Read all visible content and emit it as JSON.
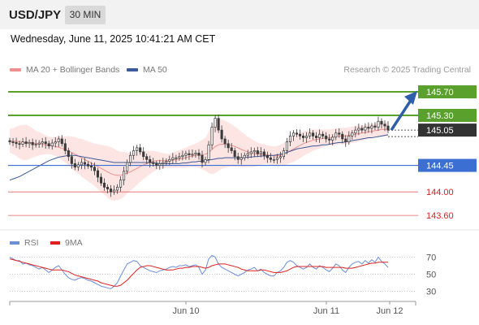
{
  "header": {
    "symbol": "USD/JPY",
    "interval": "30 MIN"
  },
  "datetime": "Wednesday, June 11, 2025 10:41:21 AM CET",
  "legend": {
    "ma20_label": "MA 20 + Bollinger Bands",
    "ma50_label": "MA 50",
    "credit": "Research © 2025 Trading Central"
  },
  "rsi_legend": {
    "rsi_label": "RSI",
    "ma9_label": "9MA"
  },
  "colors": {
    "resistance": "#5aa02c",
    "support": "#3b6fd1",
    "target_red": "#e06666",
    "arrow": "#2f5fa8",
    "current": "#333333",
    "candle": "#3a3a3a",
    "band": "#fde0df",
    "ma20": "#f08f8f",
    "ma50": "#3c5a99",
    "rsi": "#6c8ed8",
    "ma9": "#e0201f"
  },
  "chart_data": {
    "type": "candlestick",
    "y_range": [
      143.45,
      145.88
    ],
    "levels": [
      {
        "value": 145.7,
        "label": "145.70",
        "kind": "resistance"
      },
      {
        "value": 145.3,
        "label": "145.30",
        "kind": "resistance"
      },
      {
        "value": 145.05,
        "label": "145.05",
        "kind": "current"
      },
      {
        "value": 144.45,
        "label": "144.45",
        "kind": "support"
      },
      {
        "value": 144.0,
        "label": "144.00",
        "kind": "target"
      },
      {
        "value": 143.6,
        "label": "143.60",
        "kind": "target"
      }
    ],
    "x_labels": [
      "Jun 10",
      "Jun 11",
      "Jun 12"
    ],
    "closes": [
      144.85,
      144.84,
      144.82,
      144.81,
      144.85,
      144.82,
      144.84,
      144.8,
      144.81,
      144.83,
      144.85,
      144.82,
      144.78,
      144.83,
      144.85,
      144.9,
      144.82,
      144.7,
      144.6,
      144.48,
      144.42,
      144.46,
      144.5,
      144.47,
      144.44,
      144.42,
      144.36,
      144.25,
      144.15,
      144.08,
      144.05,
      144.0,
      144.03,
      144.08,
      144.2,
      144.35,
      144.5,
      144.62,
      144.7,
      144.75,
      144.68,
      144.6,
      144.55,
      144.5,
      144.48,
      144.45,
      144.48,
      144.5,
      144.52,
      144.55,
      144.58,
      144.58,
      144.6,
      144.62,
      144.65,
      144.63,
      144.64,
      144.66,
      144.62,
      144.5,
      144.55,
      144.8,
      145.1,
      145.25,
      145.05,
      144.9,
      144.82,
      144.75,
      144.7,
      144.6,
      144.55,
      144.58,
      144.62,
      144.65,
      144.68,
      144.7,
      144.65,
      144.68,
      144.62,
      144.58,
      144.55,
      144.55,
      144.58,
      144.6,
      144.7,
      144.85,
      144.95,
      145.0,
      144.98,
      144.95,
      144.92,
      144.95,
      145.0,
      144.95,
      144.92,
      144.98,
      144.95,
      144.9,
      144.88,
      144.93,
      145.0,
      144.98,
      144.9,
      144.85,
      144.95,
      145.0,
      145.05,
      145.08,
      145.05,
      145.1,
      145.08,
      145.12,
      145.1,
      145.2,
      145.15,
      145.12,
      145.05
    ],
    "ma20": [
      144.87,
      144.86,
      144.86,
      144.85,
      144.84,
      144.84,
      144.84,
      144.83,
      144.82,
      144.82,
      144.81,
      144.8,
      144.79,
      144.78,
      144.77,
      144.76,
      144.74,
      144.72,
      144.7,
      144.67,
      144.64,
      144.61,
      144.58,
      144.55,
      144.52,
      144.49,
      144.46,
      144.43,
      144.4,
      144.37,
      144.34,
      144.31,
      144.29,
      144.28,
      144.28,
      144.3,
      144.32,
      144.34,
      144.37,
      144.4,
      144.43,
      144.46,
      144.48,
      144.5,
      144.52,
      144.53,
      144.53,
      144.53,
      144.53,
      144.53,
      144.54,
      144.55,
      144.56,
      144.57,
      144.58,
      144.6,
      144.61,
      144.62,
      144.63,
      144.63,
      144.64,
      144.67,
      144.72,
      144.77,
      144.8,
      144.81,
      144.81,
      144.8,
      144.79,
      144.77,
      144.75,
      144.72,
      144.7,
      144.68,
      144.66,
      144.65,
      144.64,
      144.64,
      144.64,
      144.63,
      144.62,
      144.61,
      144.61,
      144.62,
      144.64,
      144.67,
      144.7,
      144.73,
      144.76,
      144.79,
      144.82,
      144.84,
      144.86,
      144.88,
      144.89,
      144.9,
      144.91,
      144.92,
      144.92,
      144.93,
      144.94,
      144.95,
      144.95,
      144.95,
      144.96,
      144.97,
      144.98,
      144.99,
      145.0,
      145.01,
      145.02,
      145.03,
      145.04,
      145.05,
      145.06,
      145.06,
      145.07
    ],
    "ma50": [
      144.2,
      144.22,
      144.24,
      144.26,
      144.29,
      144.32,
      144.35,
      144.38,
      144.41,
      144.44,
      144.47,
      144.5,
      144.53,
      144.55,
      144.57,
      144.59,
      144.6,
      144.61,
      144.62,
      144.62,
      144.62,
      144.61,
      144.6,
      144.59,
      144.58,
      144.57,
      144.56,
      144.55,
      144.54,
      144.53,
      144.52,
      144.51,
      144.5,
      144.5,
      144.5,
      144.5,
      144.5,
      144.5,
      144.5,
      144.5,
      144.5,
      144.5,
      144.5,
      144.5,
      144.49,
      144.49,
      144.48,
      144.48,
      144.48,
      144.48,
      144.48,
      144.48,
      144.48,
      144.49,
      144.49,
      144.5,
      144.51,
      144.51,
      144.52,
      144.52,
      144.53,
      144.54,
      144.55,
      144.56,
      144.57,
      144.57,
      144.58,
      144.58,
      144.58,
      144.58,
      144.58,
      144.58,
      144.58,
      144.59,
      144.59,
      144.6,
      144.6,
      144.61,
      144.61,
      144.61,
      144.62,
      144.62,
      144.63,
      144.64,
      144.65,
      144.67,
      144.69,
      144.71,
      144.73,
      144.74,
      144.75,
      144.76,
      144.77,
      144.78,
      144.78,
      144.79,
      144.8,
      144.8,
      144.81,
      144.82,
      144.83,
      144.84,
      144.84,
      144.85,
      144.86,
      144.87,
      144.88,
      144.89,
      144.9,
      144.91,
      144.92,
      144.92,
      144.93,
      144.94,
      144.95,
      144.96,
      144.97
    ],
    "band_width": [
      0.2,
      0.22,
      0.25,
      0.28,
      0.3,
      0.3,
      0.28,
      0.25,
      0.22,
      0.2,
      0.18,
      0.16,
      0.15,
      0.15,
      0.16,
      0.18,
      0.2,
      0.22,
      0.25,
      0.27,
      0.29,
      0.3,
      0.32,
      0.33,
      0.34,
      0.35,
      0.36,
      0.38,
      0.4,
      0.42,
      0.44,
      0.45,
      0.44,
      0.42,
      0.4,
      0.38,
      0.35,
      0.32,
      0.3,
      0.28,
      0.26,
      0.24,
      0.22,
      0.2,
      0.18,
      0.16,
      0.14,
      0.13,
      0.12,
      0.12,
      0.13,
      0.14,
      0.15,
      0.16,
      0.17,
      0.18,
      0.19,
      0.2,
      0.22,
      0.25,
      0.28,
      0.35,
      0.42,
      0.45,
      0.44,
      0.42,
      0.4,
      0.38,
      0.36,
      0.34,
      0.32,
      0.3,
      0.28,
      0.26,
      0.24,
      0.22,
      0.2,
      0.18,
      0.17,
      0.16,
      0.16,
      0.16,
      0.17,
      0.18,
      0.19,
      0.2,
      0.21,
      0.22,
      0.22,
      0.22,
      0.21,
      0.2,
      0.19,
      0.18,
      0.17,
      0.16,
      0.15,
      0.14,
      0.14,
      0.14,
      0.14,
      0.14,
      0.14,
      0.14,
      0.14,
      0.14,
      0.14,
      0.14,
      0.13,
      0.13,
      0.12,
      0.12,
      0.12,
      0.12,
      0.12,
      0.12,
      0.12
    ],
    "rsi": {
      "y_range": [
        20,
        80
      ],
      "ticks": [
        70,
        50,
        30
      ],
      "rsi": [
        70,
        68,
        66,
        66,
        62,
        63,
        61,
        60,
        58,
        56,
        58,
        55,
        52,
        55,
        58,
        60,
        55,
        50,
        46,
        44,
        43,
        45,
        46,
        45,
        43,
        42,
        40,
        38,
        36,
        35,
        34,
        33,
        36,
        40,
        48,
        55,
        62,
        64,
        66,
        65,
        60,
        58,
        56,
        54,
        53,
        52,
        54,
        55,
        56,
        58,
        59,
        58,
        60,
        60,
        61,
        59,
        60,
        61,
        58,
        50,
        55,
        68,
        72,
        70,
        62,
        58,
        56,
        54,
        52,
        50,
        48,
        50,
        52,
        55,
        56,
        58,
        54,
        56,
        52,
        50,
        48,
        48,
        52,
        54,
        58,
        64,
        66,
        64,
        60,
        58,
        56,
        58,
        62,
        58,
        56,
        60,
        58,
        55,
        53,
        57,
        62,
        60,
        55,
        52,
        58,
        62,
        64,
        65,
        62,
        66,
        63,
        67,
        64,
        70,
        65,
        62,
        58
      ],
      "ma9": [
        68,
        67,
        66,
        65,
        64,
        63,
        62,
        61,
        60,
        59,
        58,
        57,
        56,
        55,
        55,
        55,
        55,
        54,
        53,
        51,
        49,
        48,
        47,
        46,
        45,
        44,
        43,
        42,
        40,
        39,
        38,
        37,
        36,
        36,
        37,
        40,
        43,
        47,
        51,
        55,
        58,
        59,
        60,
        60,
        59,
        58,
        57,
        56,
        55,
        55,
        55,
        56,
        57,
        57,
        58,
        58,
        59,
        59,
        59,
        58,
        57,
        58,
        60,
        61,
        62,
        62,
        62,
        61,
        60,
        59,
        58,
        56,
        55,
        54,
        54,
        54,
        54,
        55,
        55,
        54,
        53,
        52,
        52,
        52,
        53,
        54,
        56,
        58,
        59,
        59,
        59,
        59,
        59,
        59,
        59,
        59,
        59,
        58,
        58,
        58,
        58,
        58,
        58,
        57,
        57,
        57,
        58,
        59,
        60,
        61,
        62,
        63,
        63,
        64,
        64,
        64,
        64
      ]
    }
  }
}
